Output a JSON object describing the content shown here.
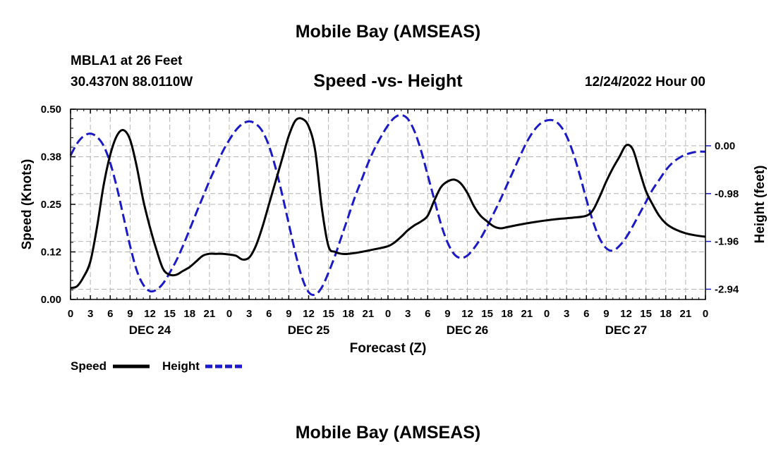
{
  "header": {
    "title": "Mobile Bay (AMSEAS)",
    "station": "MBLA1 at 26 Feet",
    "coordinates": "30.4370N  88.0110W",
    "chart_title": "Speed -vs- Height",
    "run_time": "12/24/2022 Hour 00"
  },
  "footer": {
    "title": "Mobile Bay (AMSEAS)"
  },
  "colors": {
    "speed": "#000000",
    "height": "#1a1ac8",
    "grid": "#b4b4b4"
  },
  "chart_data": {
    "type": "line",
    "title": "Speed -vs- Height",
    "xlabel": "Forecast (Z)",
    "ylabel": "Speed (Knots)",
    "y2label": "Height (feet)",
    "xlim": [
      0,
      96
    ],
    "ylim": [
      0,
      0.5
    ],
    "y2lim": [
      -3.15,
      0.75
    ],
    "x_ticks": [
      0,
      3,
      6,
      9,
      12,
      15,
      18,
      21,
      24,
      27,
      30,
      33,
      36,
      39,
      42,
      45,
      48,
      51,
      54,
      57,
      60,
      63,
      66,
      69,
      72,
      75,
      78,
      81,
      84,
      87,
      90,
      93,
      96
    ],
    "x_tick_labels": [
      "0",
      "3",
      "6",
      "9",
      "12",
      "15",
      "18",
      "21",
      "0",
      "3",
      "6",
      "9",
      "12",
      "15",
      "18",
      "21",
      "0",
      "3",
      "6",
      "9",
      "12",
      "15",
      "18",
      "21",
      "0",
      "3",
      "6",
      "9",
      "12",
      "15",
      "18",
      "21",
      "0"
    ],
    "day_labels": [
      {
        "hour": 12,
        "label": "DEC 24"
      },
      {
        "hour": 36,
        "label": "DEC 25"
      },
      {
        "hour": 60,
        "label": "DEC 26"
      },
      {
        "hour": 84,
        "label": "DEC 27"
      }
    ],
    "y_ticks": [
      0.0,
      0.125,
      0.25,
      0.375,
      0.5
    ],
    "y_tick_labels": [
      "0.00",
      "0.12",
      "0.25",
      "0.38",
      "0.50"
    ],
    "y2_ticks": [
      0.0,
      -0.98,
      -1.96,
      -2.94
    ],
    "y2_tick_labels": [
      "0.00",
      "-0.98",
      "-1.96",
      "-2.94"
    ],
    "series": [
      {
        "name": "Speed",
        "axis": "left",
        "style": "solid",
        "points": [
          [
            0,
            0.03
          ],
          [
            1,
            0.035
          ],
          [
            2,
            0.06
          ],
          [
            3,
            0.1
          ],
          [
            4,
            0.19
          ],
          [
            5,
            0.3
          ],
          [
            6,
            0.38
          ],
          [
            7,
            0.43
          ],
          [
            8,
            0.445
          ],
          [
            9,
            0.42
          ],
          [
            10,
            0.35
          ],
          [
            11,
            0.26
          ],
          [
            12,
            0.19
          ],
          [
            13,
            0.13
          ],
          [
            14,
            0.08
          ],
          [
            15,
            0.065
          ],
          [
            16,
            0.065
          ],
          [
            17,
            0.075
          ],
          [
            18,
            0.085
          ],
          [
            19,
            0.1
          ],
          [
            20,
            0.115
          ],
          [
            21,
            0.12
          ],
          [
            22,
            0.12
          ],
          [
            23,
            0.12
          ],
          [
            24,
            0.118
          ],
          [
            25,
            0.115
          ],
          [
            26,
            0.105
          ],
          [
            27,
            0.11
          ],
          [
            28,
            0.14
          ],
          [
            29,
            0.19
          ],
          [
            30,
            0.25
          ],
          [
            31,
            0.31
          ],
          [
            32,
            0.37
          ],
          [
            33,
            0.43
          ],
          [
            34,
            0.47
          ],
          [
            35,
            0.475
          ],
          [
            36,
            0.455
          ],
          [
            37,
            0.39
          ],
          [
            38,
            0.24
          ],
          [
            39,
            0.14
          ],
          [
            40,
            0.125
          ],
          [
            41,
            0.12
          ],
          [
            42,
            0.12
          ],
          [
            44,
            0.125
          ],
          [
            46,
            0.132
          ],
          [
            48,
            0.14
          ],
          [
            49,
            0.15
          ],
          [
            50,
            0.165
          ],
          [
            51,
            0.182
          ],
          [
            52,
            0.195
          ],
          [
            53,
            0.205
          ],
          [
            54,
            0.22
          ],
          [
            55,
            0.26
          ],
          [
            56,
            0.295
          ],
          [
            57,
            0.31
          ],
          [
            58,
            0.315
          ],
          [
            59,
            0.305
          ],
          [
            60,
            0.28
          ],
          [
            61,
            0.245
          ],
          [
            62,
            0.22
          ],
          [
            63,
            0.205
          ],
          [
            64,
            0.192
          ],
          [
            65,
            0.187
          ],
          [
            66,
            0.19
          ],
          [
            68,
            0.197
          ],
          [
            70,
            0.203
          ],
          [
            72,
            0.208
          ],
          [
            74,
            0.212
          ],
          [
            76,
            0.215
          ],
          [
            78,
            0.22
          ],
          [
            79,
            0.235
          ],
          [
            80,
            0.27
          ],
          [
            81,
            0.31
          ],
          [
            82,
            0.345
          ],
          [
            83,
            0.375
          ],
          [
            84,
            0.405
          ],
          [
            85,
            0.395
          ],
          [
            86,
            0.34
          ],
          [
            87,
            0.285
          ],
          [
            88,
            0.25
          ],
          [
            89,
            0.22
          ],
          [
            90,
            0.2
          ],
          [
            91,
            0.188
          ],
          [
            92,
            0.18
          ],
          [
            93,
            0.174
          ],
          [
            94,
            0.17
          ],
          [
            95,
            0.167
          ],
          [
            96,
            0.165
          ]
        ]
      },
      {
        "name": "Height",
        "axis": "right",
        "style": "dashed",
        "points": [
          [
            0,
            -0.2
          ],
          [
            1,
            0.05
          ],
          [
            2,
            0.2
          ],
          [
            3,
            0.25
          ],
          [
            4,
            0.18
          ],
          [
            5,
            0.0
          ],
          [
            6,
            -0.35
          ],
          [
            7,
            -0.85
          ],
          [
            8,
            -1.45
          ],
          [
            9,
            -2.05
          ],
          [
            10,
            -2.55
          ],
          [
            11,
            -2.85
          ],
          [
            12,
            -2.98
          ],
          [
            13,
            -2.95
          ],
          [
            14,
            -2.82
          ],
          [
            15,
            -2.6
          ],
          [
            16,
            -2.35
          ],
          [
            17,
            -2.05
          ],
          [
            18,
            -1.72
          ],
          [
            19,
            -1.38
          ],
          [
            20,
            -1.05
          ],
          [
            21,
            -0.72
          ],
          [
            22,
            -0.42
          ],
          [
            23,
            -0.12
          ],
          [
            24,
            0.12
          ],
          [
            25,
            0.32
          ],
          [
            26,
            0.45
          ],
          [
            27,
            0.5
          ],
          [
            28,
            0.45
          ],
          [
            29,
            0.3
          ],
          [
            30,
            0.0
          ],
          [
            31,
            -0.45
          ],
          [
            32,
            -1.0
          ],
          [
            33,
            -1.6
          ],
          [
            34,
            -2.2
          ],
          [
            35,
            -2.7
          ],
          [
            36,
            -3.0
          ],
          [
            37,
            -3.05
          ],
          [
            38,
            -2.9
          ],
          [
            39,
            -2.6
          ],
          [
            40,
            -2.25
          ],
          [
            41,
            -1.85
          ],
          [
            42,
            -1.45
          ],
          [
            43,
            -1.05
          ],
          [
            44,
            -0.7
          ],
          [
            45,
            -0.35
          ],
          [
            46,
            -0.05
          ],
          [
            47,
            0.2
          ],
          [
            48,
            0.42
          ],
          [
            49,
            0.58
          ],
          [
            50,
            0.63
          ],
          [
            51,
            0.55
          ],
          [
            52,
            0.3
          ],
          [
            53,
            -0.1
          ],
          [
            54,
            -0.6
          ],
          [
            55,
            -1.1
          ],
          [
            56,
            -1.6
          ],
          [
            57,
            -1.98
          ],
          [
            58,
            -2.22
          ],
          [
            59,
            -2.3
          ],
          [
            60,
            -2.25
          ],
          [
            61,
            -2.1
          ],
          [
            62,
            -1.9
          ],
          [
            63,
            -1.65
          ],
          [
            64,
            -1.38
          ],
          [
            65,
            -1.1
          ],
          [
            66,
            -0.8
          ],
          [
            67,
            -0.5
          ],
          [
            68,
            -0.2
          ],
          [
            69,
            0.08
          ],
          [
            70,
            0.3
          ],
          [
            71,
            0.45
          ],
          [
            72,
            0.52
          ],
          [
            73,
            0.52
          ],
          [
            74,
            0.42
          ],
          [
            75,
            0.2
          ],
          [
            76,
            -0.15
          ],
          [
            77,
            -0.6
          ],
          [
            78,
            -1.1
          ],
          [
            79,
            -1.55
          ],
          [
            80,
            -1.9
          ],
          [
            81,
            -2.1
          ],
          [
            82,
            -2.15
          ],
          [
            83,
            -2.05
          ],
          [
            84,
            -1.88
          ],
          [
            85,
            -1.65
          ],
          [
            86,
            -1.4
          ],
          [
            87,
            -1.15
          ],
          [
            88,
            -0.9
          ],
          [
            89,
            -0.7
          ],
          [
            90,
            -0.5
          ],
          [
            91,
            -0.35
          ],
          [
            92,
            -0.25
          ],
          [
            93,
            -0.18
          ],
          [
            94,
            -0.14
          ],
          [
            95,
            -0.12
          ],
          [
            96,
            -0.12
          ]
        ]
      }
    ],
    "legend": [
      {
        "label": "Speed",
        "series": "Speed"
      },
      {
        "label": "Height",
        "series": "Height"
      }
    ]
  }
}
